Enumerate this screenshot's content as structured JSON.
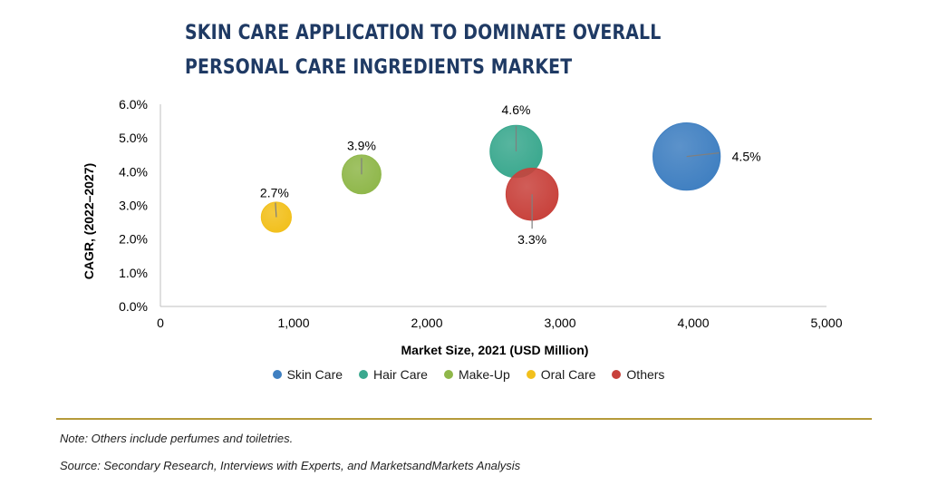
{
  "chart_data": {
    "type": "scatter",
    "title": "SKIN CARE APPLICATION TO DOMINATE OVERALL PERSONAL CARE INGREDIENTS MARKET",
    "xlabel": "Market Size, 2021 (USD Million)",
    "ylabel": "CAGR, (2022–2027)",
    "xlim": [
      0,
      5000
    ],
    "ylim": [
      0.0,
      6.0
    ],
    "xticks": [
      "0",
      "1,000",
      "2,000",
      "3,000",
      "4,000",
      "5,000"
    ],
    "yticks": [
      "0.0%",
      "1.0%",
      "2.0%",
      "3.0%",
      "4.0%",
      "5.0%",
      "6.0%"
    ],
    "grid": false,
    "legend_position": "bottom",
    "series": [
      {
        "name": "Skin Care",
        "color": "#3f7fc1",
        "x": 3950,
        "y": 4.45,
        "label": "4.5%",
        "size": 4.5
      },
      {
        "name": "Hair Care",
        "color": "#3aa88e",
        "x": 2670,
        "y": 4.6,
        "label": "4.6%",
        "size": 2.7
      },
      {
        "name": "Make-Up",
        "color": "#8fb74a",
        "x": 1510,
        "y": 3.92,
        "label": "3.9%",
        "size": 1.5
      },
      {
        "name": "Oral Care",
        "color": "#f2c01c",
        "x": 870,
        "y": 2.65,
        "label": "2.7%",
        "size": 0.9
      },
      {
        "name": "Others",
        "color": "#c8413b",
        "x": 2790,
        "y": 3.33,
        "label": "3.3%",
        "size": 2.7
      }
    ]
  },
  "notes": {
    "note": "Note: Others include perfumes and toiletries.",
    "source": "Source: Secondary Research, Interviews with Experts, and MarketsandMarkets Analysis"
  }
}
